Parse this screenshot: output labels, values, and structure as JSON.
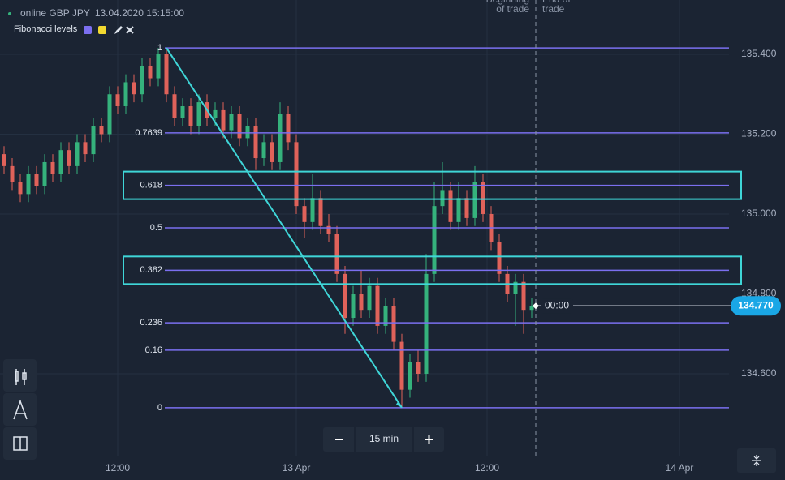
{
  "header": {
    "instrument": "online GBP JPY",
    "datetime": "13.04.2020 15:15:00",
    "indicator": "Fibonacci levels",
    "swatches": [
      "#7b6ff0",
      "#f2d930"
    ]
  },
  "trade_labels": {
    "beginning": [
      "Beginning",
      "of trade"
    ],
    "end": [
      "End of",
      "trade"
    ]
  },
  "chart": {
    "up_color": "#35b27c",
    "down_color": "#e0625a",
    "fib_color": "#7b6ff0",
    "trend_color": "#3fd6d8",
    "ylim": [
      134.334,
      135.536
    ],
    "yticks": [
      {
        "value": 135.4,
        "label": "135.400"
      },
      {
        "value": 135.2,
        "label": "135.200"
      },
      {
        "value": 135.0,
        "label": "135.000"
      },
      {
        "value": 134.8,
        "label": "134.800"
      },
      {
        "value": 134.6,
        "label": "134.600"
      }
    ],
    "time_labels": [
      "12:00",
      "13 Apr",
      "12:00",
      "14 Apr"
    ],
    "fibonacci": {
      "high": 135.416,
      "low": 134.515,
      "levels": [
        {
          "value": 1
        },
        {
          "value": 0.7639
        },
        {
          "value": 0.618,
          "highlight": true
        },
        {
          "value": 0.5
        },
        {
          "value": 0.382,
          "highlight": true
        },
        {
          "value": 0.236
        },
        {
          "value": 0.16
        },
        {
          "value": 0
        }
      ]
    },
    "current_price": {
      "value": 134.77,
      "label": "134.770"
    },
    "timer": "00:00",
    "candles": [
      [
        135.15,
        135.17,
        135.1,
        135.12
      ],
      [
        135.12,
        135.14,
        135.06,
        135.08
      ],
      [
        135.08,
        135.1,
        135.03,
        135.05
      ],
      [
        135.05,
        135.12,
        135.03,
        135.1
      ],
      [
        135.1,
        135.12,
        135.05,
        135.07
      ],
      [
        135.07,
        135.15,
        135.05,
        135.13
      ],
      [
        135.13,
        135.15,
        135.08,
        135.1
      ],
      [
        135.1,
        135.18,
        135.08,
        135.16
      ],
      [
        135.16,
        135.18,
        135.1,
        135.12
      ],
      [
        135.12,
        135.2,
        135.1,
        135.18
      ],
      [
        135.18,
        135.2,
        135.13,
        135.15
      ],
      [
        135.15,
        135.24,
        135.13,
        135.22
      ],
      [
        135.22,
        135.24,
        135.18,
        135.2
      ],
      [
        135.2,
        135.32,
        135.18,
        135.3
      ],
      [
        135.3,
        135.32,
        135.25,
        135.27
      ],
      [
        135.27,
        135.35,
        135.25,
        135.33
      ],
      [
        135.33,
        135.35,
        135.28,
        135.3
      ],
      [
        135.3,
        135.39,
        135.28,
        135.37
      ],
      [
        135.37,
        135.39,
        135.32,
        135.34
      ],
      [
        135.34,
        135.416,
        135.32,
        135.4
      ],
      [
        135.4,
        135.41,
        135.28,
        135.3
      ],
      [
        135.3,
        135.32,
        135.22,
        135.24
      ],
      [
        135.24,
        135.29,
        135.22,
        135.27
      ],
      [
        135.27,
        135.29,
        135.2,
        135.22
      ],
      [
        135.22,
        135.3,
        135.2,
        135.28
      ],
      [
        135.28,
        135.3,
        135.22,
        135.24
      ],
      [
        135.24,
        135.28,
        135.22,
        135.26
      ],
      [
        135.26,
        135.28,
        135.19,
        135.21
      ],
      [
        135.21,
        135.27,
        135.19,
        135.25
      ],
      [
        135.25,
        135.27,
        135.17,
        135.19
      ],
      [
        135.19,
        135.24,
        135.17,
        135.22
      ],
      [
        135.22,
        135.24,
        135.11,
        135.14
      ],
      [
        135.14,
        135.2,
        135.12,
        135.18
      ],
      [
        135.18,
        135.2,
        135.11,
        135.13
      ],
      [
        135.13,
        135.28,
        135.11,
        135.25
      ],
      [
        135.25,
        135.27,
        135.16,
        135.18
      ],
      [
        135.18,
        135.2,
        135.0,
        135.02
      ],
      [
        135.02,
        135.04,
        134.94,
        134.98
      ],
      [
        134.98,
        135.1,
        134.96,
        135.04
      ],
      [
        135.04,
        135.06,
        134.95,
        134.97
      ],
      [
        134.97,
        135.0,
        134.93,
        134.95
      ],
      [
        134.95,
        134.97,
        134.83,
        134.85
      ],
      [
        134.85,
        134.87,
        134.7,
        134.74
      ],
      [
        134.74,
        134.82,
        134.72,
        134.8
      ],
      [
        134.8,
        134.86,
        134.74,
        134.76
      ],
      [
        134.76,
        134.84,
        134.74,
        134.82
      ],
      [
        134.82,
        134.84,
        134.7,
        134.72
      ],
      [
        134.72,
        134.79,
        134.7,
        134.77
      ],
      [
        134.77,
        134.79,
        134.66,
        134.68
      ],
      [
        134.68,
        134.7,
        134.515,
        134.56
      ],
      [
        134.56,
        134.65,
        134.54,
        134.63
      ],
      [
        134.63,
        134.66,
        134.58,
        134.6
      ],
      [
        134.6,
        134.9,
        134.58,
        134.85
      ],
      [
        134.85,
        135.08,
        134.83,
        135.02
      ],
      [
        135.02,
        135.13,
        135.0,
        135.06
      ],
      [
        135.06,
        135.08,
        134.96,
        134.98
      ],
      [
        134.98,
        135.08,
        134.96,
        135.04
      ],
      [
        135.04,
        135.06,
        134.97,
        134.99
      ],
      [
        134.99,
        135.12,
        134.97,
        135.08
      ],
      [
        135.08,
        135.1,
        134.98,
        135.0
      ],
      [
        135.0,
        135.02,
        134.91,
        134.93
      ],
      [
        134.93,
        134.95,
        134.83,
        134.85
      ],
      [
        134.85,
        134.87,
        134.78,
        134.8
      ],
      [
        134.8,
        134.85,
        134.72,
        134.83
      ],
      [
        134.83,
        134.85,
        134.7,
        134.76
      ],
      [
        134.76,
        134.79,
        134.74,
        134.77
      ]
    ]
  },
  "controls": {
    "timeframe": "15 min"
  }
}
